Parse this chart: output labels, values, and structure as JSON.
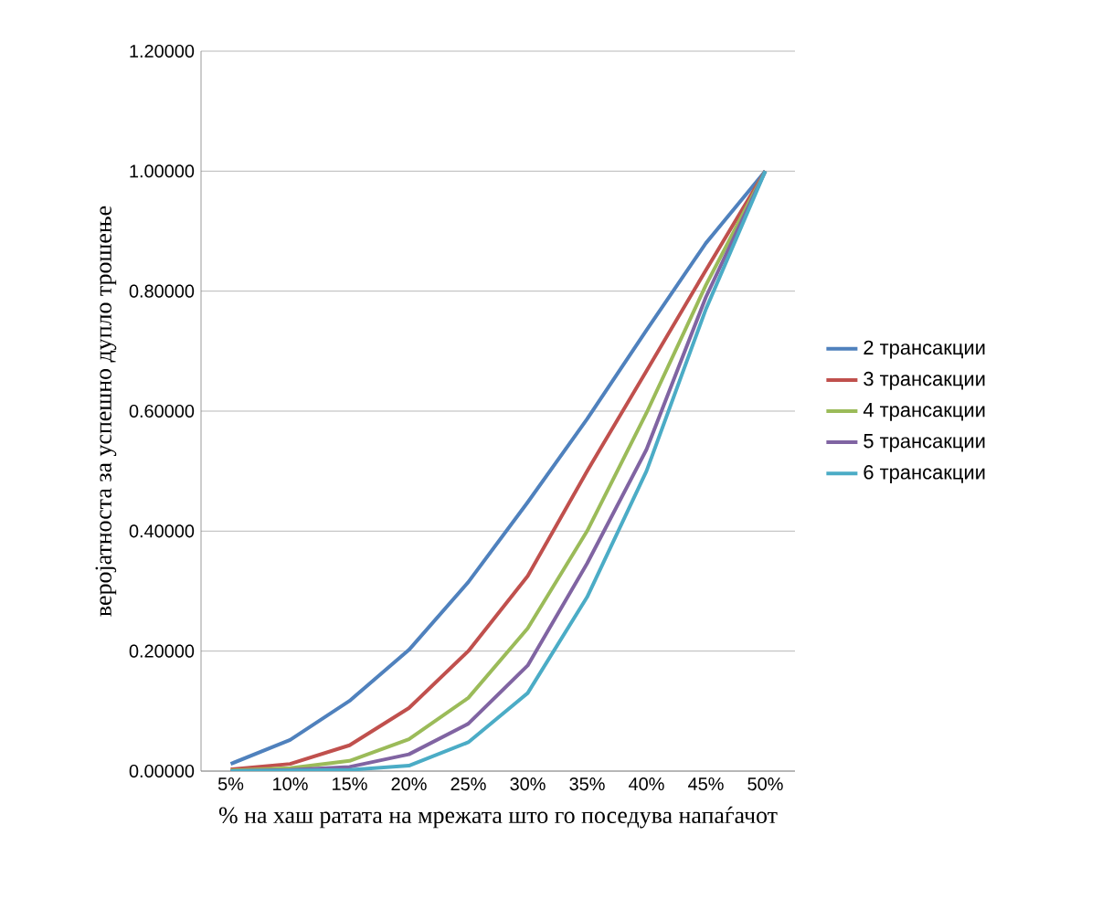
{
  "chart_data": {
    "type": "line",
    "xlabel": "% на  хаш ратата на мрежата што го поседува напаѓачот",
    "ylabel": "веројатноста за успешно дупло трошење",
    "categories": [
      "5%",
      "10%",
      "15%",
      "20%",
      "25%",
      "30%",
      "35%",
      "40%",
      "45%",
      "50%"
    ],
    "ylim": [
      0,
      1.2
    ],
    "yticks": [
      {
        "value": 0,
        "label": "0.00000"
      },
      {
        "value": 0.2,
        "label": "0.20000"
      },
      {
        "value": 0.4,
        "label": "0.40000"
      },
      {
        "value": 0.6,
        "label": "0.60000"
      },
      {
        "value": 0.8,
        "label": "0.80000"
      },
      {
        "value": 1.0,
        "label": "1.00000"
      },
      {
        "value": 1.2,
        "label": "1.20000"
      }
    ],
    "grid": "y",
    "legend": "right",
    "marker": "none",
    "series": [
      {
        "name": "2 трансакции",
        "color": "#4f81bd",
        "values": [
          0.012,
          0.052,
          0.117,
          0.202,
          0.315,
          0.448,
          0.587,
          0.735,
          0.88,
          1.0
        ]
      },
      {
        "name": "3 трансакции",
        "color": "#c0504d",
        "values": [
          0.003,
          0.012,
          0.043,
          0.105,
          0.2,
          0.325,
          0.5,
          0.667,
          0.835,
          1.0
        ]
      },
      {
        "name": "4 трансакции",
        "color": "#9bbb59",
        "values": [
          0.001,
          0.005,
          0.017,
          0.053,
          0.122,
          0.238,
          0.4,
          0.597,
          0.81,
          1.0
        ]
      },
      {
        "name": "5 трансакции",
        "color": "#8064a2",
        "values": [
          0.0,
          0.002,
          0.007,
          0.028,
          0.079,
          0.176,
          0.346,
          0.536,
          0.79,
          1.0
        ]
      },
      {
        "name": "6 трансакции",
        "color": "#4bacc6",
        "values": [
          0.0,
          0.001,
          0.002,
          0.009,
          0.048,
          0.13,
          0.29,
          0.5,
          0.77,
          1.0
        ]
      }
    ]
  }
}
